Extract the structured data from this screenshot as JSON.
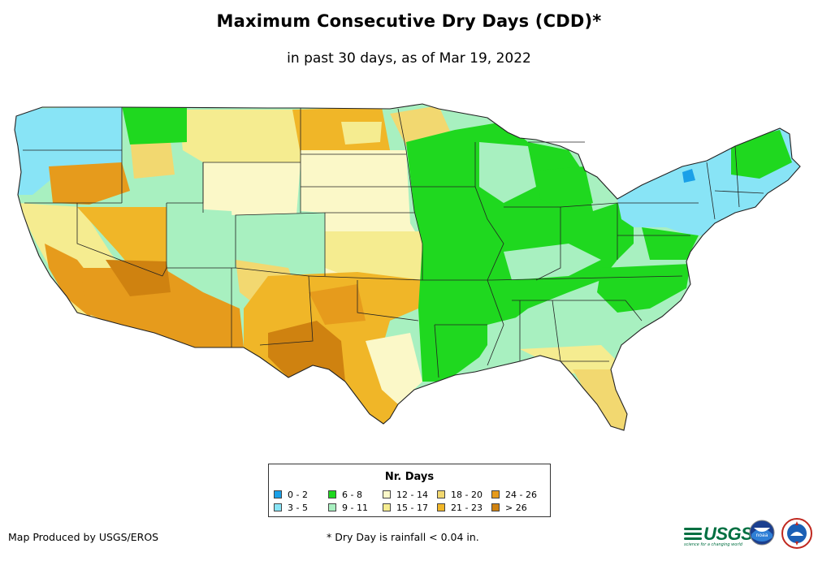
{
  "header": {
    "title": "Maximum Consecutive Dry Days (CDD)*",
    "subtitle": "in past 30 days, as of Mar 19, 2022"
  },
  "legend": {
    "title": "Nr. Days",
    "items": [
      {
        "label": "0 - 2",
        "color": "#1aa0e8"
      },
      {
        "label": "3 - 5",
        "color": "#88e4f6"
      },
      {
        "label": "6 - 8",
        "color": "#1fd81f"
      },
      {
        "label": "9 - 11",
        "color": "#a8f0c0"
      },
      {
        "label": "12 - 14",
        "color": "#fbf8c8"
      },
      {
        "label": "15 - 17",
        "color": "#f5ec90"
      },
      {
        "label": "18 - 20",
        "color": "#f2d870"
      },
      {
        "label": "21 - 23",
        "color": "#f0b628"
      },
      {
        "label": "24 - 26",
        "color": "#e69b1c"
      },
      {
        "label": "> 26",
        "color": "#cf8210"
      }
    ]
  },
  "footer": {
    "credit": "Map Produced by USGS/EROS",
    "footnote": "* Dry Day is rainfall < 0.04 in."
  },
  "logos": {
    "usgs": "USGS",
    "usgs_tagline": "science for a changing world",
    "noaa": "noaa",
    "nws": "noaa-nws-icon"
  }
}
